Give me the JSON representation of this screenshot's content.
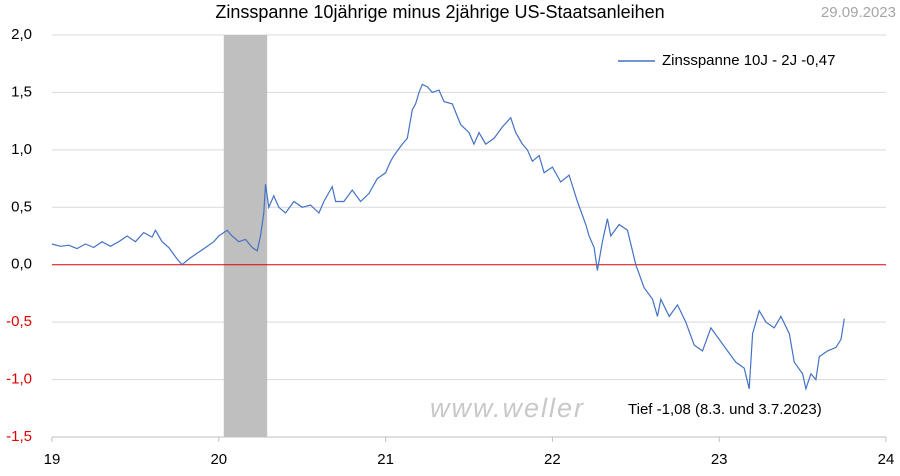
{
  "chart_data": {
    "type": "line",
    "title": "Zinsspanne 10jährige minus 2jährige US-Staatsanleihen",
    "date": "29.09.2023",
    "watermark": "www.weller",
    "annotation": "Tief -1,08 (8.3. und 3.7.2023)",
    "xlim": [
      19,
      24
    ],
    "xticks": [
      19,
      20,
      21,
      22,
      23,
      24
    ],
    "ylim": [
      -1.5,
      2.0
    ],
    "yticks": [
      {
        "value": -1.5,
        "label": "-1,5"
      },
      {
        "value": -1.0,
        "label": "-1,0"
      },
      {
        "value": -0.5,
        "label": "-0,5"
      },
      {
        "value": 0.0,
        "label": "0,0"
      },
      {
        "value": 0.5,
        "label": "0,5"
      },
      {
        "value": 1.0,
        "label": "1,0"
      },
      {
        "value": 1.5,
        "label": "1,5"
      },
      {
        "value": 2.0,
        "label": "2,0"
      }
    ],
    "grid": true,
    "negative_tick_color": "#e00000",
    "zero_line_color": "#e00000",
    "shade": [
      20.03,
      20.29
    ],
    "shade_color": "#bfbfbf",
    "legend": "upper right",
    "x": [
      19.0,
      19.05,
      19.1,
      19.15,
      19.2,
      19.25,
      19.3,
      19.35,
      19.4,
      19.45,
      19.5,
      19.55,
      19.6,
      19.62,
      19.66,
      19.7,
      19.75,
      19.78,
      19.82,
      19.87,
      19.92,
      19.97,
      20.0,
      20.05,
      20.08,
      20.12,
      20.16,
      20.2,
      20.23,
      20.25,
      20.27,
      20.28,
      20.3,
      20.33,
      20.36,
      20.4,
      20.45,
      20.5,
      20.55,
      20.6,
      20.63,
      20.68,
      20.7,
      20.75,
      20.8,
      20.85,
      20.9,
      20.95,
      21.0,
      21.03,
      21.05,
      21.1,
      21.13,
      21.16,
      21.18,
      21.2,
      21.22,
      21.25,
      21.28,
      21.32,
      21.35,
      21.4,
      21.45,
      21.5,
      21.53,
      21.56,
      21.6,
      21.65,
      21.7,
      21.75,
      21.78,
      21.82,
      21.85,
      21.88,
      21.92,
      21.95,
      22.0,
      22.05,
      22.1,
      22.15,
      22.2,
      22.22,
      22.25,
      22.27,
      22.3,
      22.33,
      22.35,
      22.4,
      22.45,
      22.5,
      22.55,
      22.6,
      22.63,
      22.65,
      22.7,
      22.75,
      22.8,
      22.85,
      22.9,
      22.95,
      23.0,
      23.05,
      23.1,
      23.15,
      23.18,
      23.2,
      23.24,
      23.28,
      23.33,
      23.37,
      23.42,
      23.45,
      23.5,
      23.52,
      23.55,
      23.58,
      23.6,
      23.65,
      23.7,
      23.73,
      23.75
    ],
    "series": [
      {
        "name": "Zinsspanne 10J - 2J -0,47",
        "color": "#4472c4",
        "values": [
          0.18,
          0.16,
          0.17,
          0.14,
          0.18,
          0.15,
          0.2,
          0.16,
          0.2,
          0.25,
          0.2,
          0.28,
          0.24,
          0.3,
          0.2,
          0.15,
          0.05,
          0.0,
          0.05,
          0.1,
          0.15,
          0.2,
          0.25,
          0.3,
          0.25,
          0.2,
          0.22,
          0.15,
          0.12,
          0.25,
          0.45,
          0.7,
          0.5,
          0.6,
          0.5,
          0.45,
          0.55,
          0.5,
          0.52,
          0.45,
          0.55,
          0.68,
          0.55,
          0.55,
          0.65,
          0.55,
          0.62,
          0.75,
          0.8,
          0.9,
          0.95,
          1.05,
          1.1,
          1.35,
          1.4,
          1.5,
          1.57,
          1.55,
          1.5,
          1.52,
          1.42,
          1.4,
          1.22,
          1.15,
          1.05,
          1.15,
          1.05,
          1.1,
          1.2,
          1.28,
          1.15,
          1.05,
          1.0,
          0.9,
          0.95,
          0.8,
          0.85,
          0.72,
          0.78,
          0.55,
          0.35,
          0.25,
          0.15,
          -0.05,
          0.2,
          0.4,
          0.25,
          0.35,
          0.3,
          0.0,
          -0.2,
          -0.3,
          -0.45,
          -0.3,
          -0.45,
          -0.35,
          -0.5,
          -0.7,
          -0.75,
          -0.55,
          -0.65,
          -0.75,
          -0.85,
          -0.9,
          -1.08,
          -0.6,
          -0.4,
          -0.5,
          -0.55,
          -0.45,
          -0.6,
          -0.85,
          -0.95,
          -1.08,
          -0.95,
          -1.0,
          -0.8,
          -0.75,
          -0.72,
          -0.65,
          -0.47
        ]
      }
    ]
  }
}
